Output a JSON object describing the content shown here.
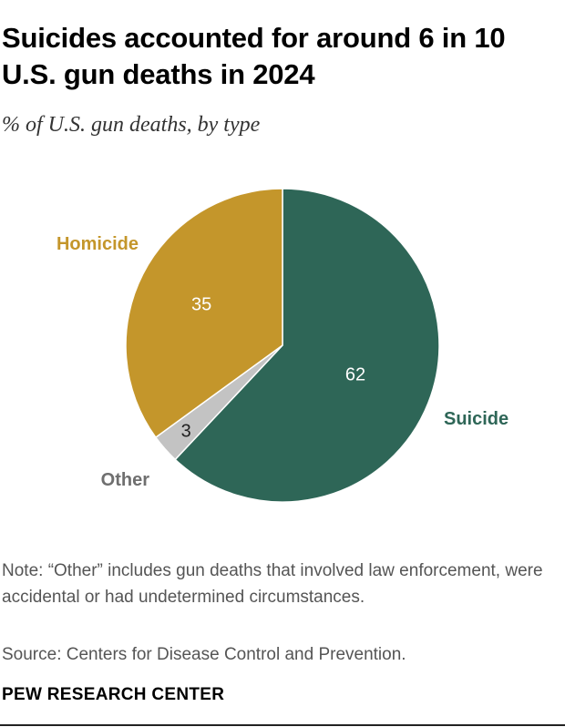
{
  "header": {
    "title": "Suicides accounted for around 6 in 10 U.S. gun deaths in 2024",
    "subtitle": "% of U.S. gun deaths, by type"
  },
  "chart_data": {
    "type": "pie",
    "title": "Suicides accounted for around 6 in 10 U.S. gun deaths in 2024",
    "subtitle": "% of U.S. gun deaths, by type",
    "slices": [
      {
        "name": "Suicide",
        "value": 62,
        "value_label": "62",
        "color": "#2e6657",
        "label_color": "#2e6657",
        "value_text_color": "#ffffff"
      },
      {
        "name": "Other",
        "value": 3,
        "value_label": "3",
        "color": "#c3c3c3",
        "label_color": "#6f6f6f",
        "value_text_color": "#222222"
      },
      {
        "name": "Homicide",
        "value": 35,
        "value_label": "35",
        "color": "#c4962b",
        "label_color": "#c4962b",
        "value_text_color": "#ffffff"
      }
    ],
    "start_angle_deg": 0,
    "direction": "clockwise",
    "legend": "none",
    "labels": "outside"
  },
  "footer": {
    "note": "Note: “Other” includes gun deaths that involved law enforcement, were accidental or had undetermined circumstances.",
    "source": "Source: Centers for Disease Control and Prevention.",
    "brand": "PEW RESEARCH CENTER"
  }
}
